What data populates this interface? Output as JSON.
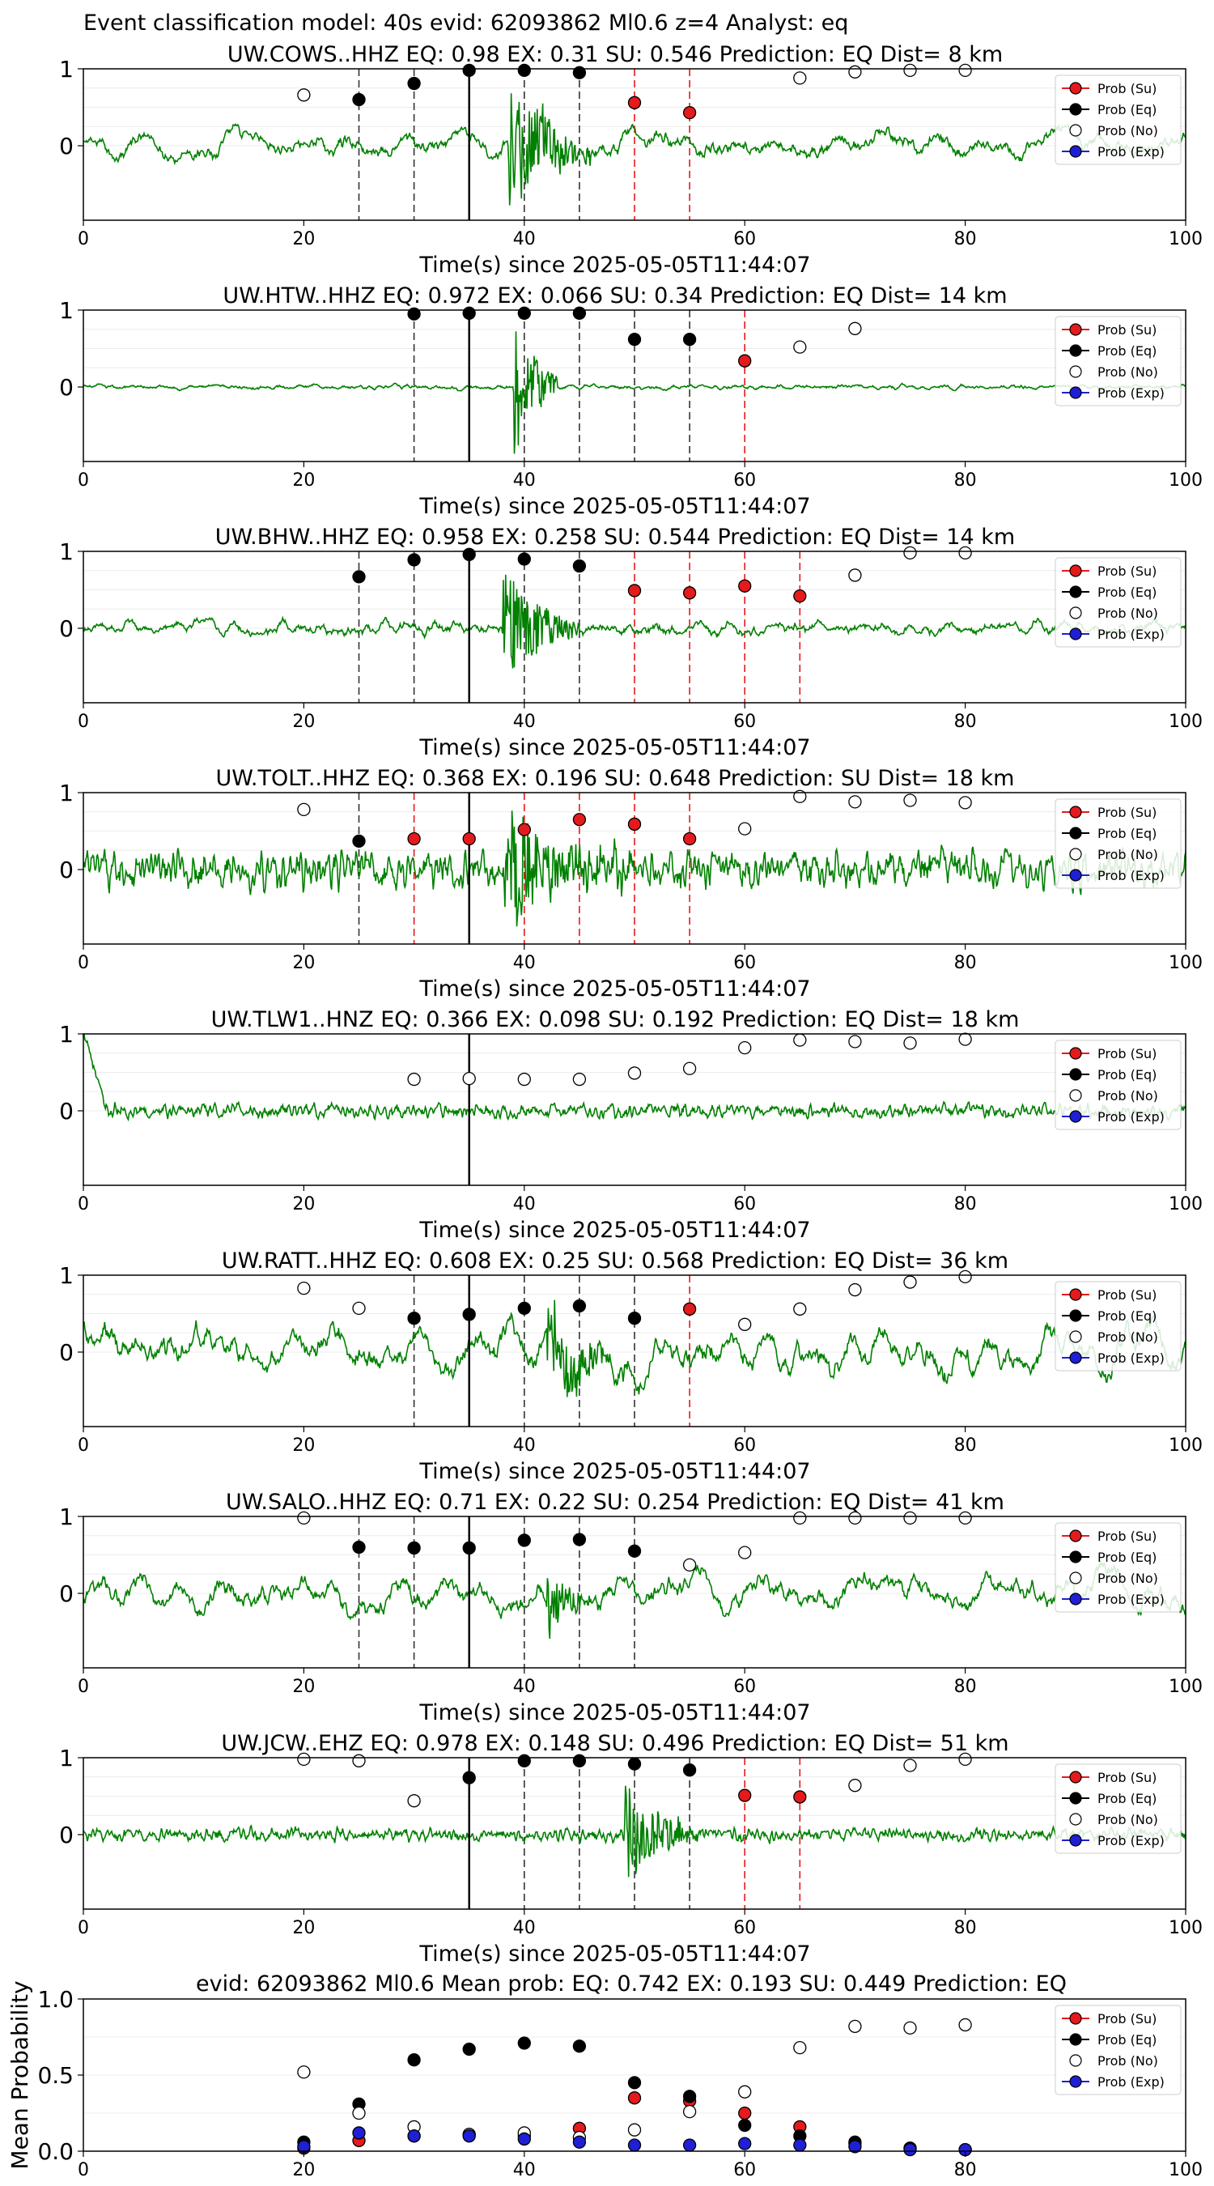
{
  "figure": {
    "suptitle": "Event classification model: 40s evid: 62093862 Ml0.6 z=4 Analyst: eq",
    "legend": [
      "Prob (Su)",
      "Prob (Eq)",
      "Prob (No)",
      "Prob (Exp)"
    ],
    "colors": {
      "su": "#e41a1c",
      "eq": "#000000",
      "no": "#ffffff",
      "exp": "#1f1fd6",
      "waveform": "#008000"
    }
  },
  "chart_data": [
    {
      "type": "line",
      "station": "UW.COWS..HHZ",
      "title": "UW.COWS..HHZ   EQ: 0.98  EX: 0.31  SU: 0.546   Prediction: EQ    Dist= 8 km",
      "xlabel": "Time(s) since 2025-05-05T11:44:07",
      "xlim": [
        0,
        100
      ],
      "xticks": [
        0,
        20,
        40,
        60,
        80,
        100
      ],
      "yticks": [
        "1",
        "0"
      ],
      "pick_time": 35,
      "waveform": {
        "burst_start": 38.5,
        "burst_end": 46,
        "burst_amp": 1.0,
        "noise_amp": 0.28,
        "smooth": 9
      },
      "points": [
        {
          "t": 20,
          "cls": "no",
          "p": 0.66
        },
        {
          "t": 25,
          "cls": "eq",
          "p": 0.6
        },
        {
          "t": 30,
          "cls": "eq",
          "p": 0.81
        },
        {
          "t": 35,
          "cls": "eq",
          "p": 0.98
        },
        {
          "t": 40,
          "cls": "eq",
          "p": 0.98
        },
        {
          "t": 45,
          "cls": "eq",
          "p": 0.95
        },
        {
          "t": 50,
          "cls": "su",
          "p": 0.56
        },
        {
          "t": 55,
          "cls": "su",
          "p": 0.43
        },
        {
          "t": 65,
          "cls": "no",
          "p": 0.88
        },
        {
          "t": 70,
          "cls": "no",
          "p": 0.96
        },
        {
          "t": 75,
          "cls": "no",
          "p": 0.98
        },
        {
          "t": 80,
          "cls": "no",
          "p": 0.98
        }
      ]
    },
    {
      "type": "line",
      "station": "UW.HTW..HHZ",
      "title": "UW.HTW..HHZ   EQ: 0.972  EX: 0.066  SU: 0.34   Prediction: EQ    Dist= 14 km",
      "xlabel": "Time(s) since 2025-05-05T11:44:07",
      "xlim": [
        0,
        100
      ],
      "xticks": [
        0,
        20,
        40,
        60,
        80,
        100
      ],
      "yticks": [
        "1",
        "0"
      ],
      "pick_time": 35,
      "waveform": {
        "burst_start": 39,
        "burst_end": 43,
        "burst_amp": 1.2,
        "noise_amp": 0.05,
        "smooth": 3
      },
      "points": [
        {
          "t": 30,
          "cls": "eq",
          "p": 0.95
        },
        {
          "t": 35,
          "cls": "eq",
          "p": 0.96
        },
        {
          "t": 40,
          "cls": "eq",
          "p": 0.96
        },
        {
          "t": 45,
          "cls": "eq",
          "p": 0.96
        },
        {
          "t": 50,
          "cls": "eq",
          "p": 0.62
        },
        {
          "t": 55,
          "cls": "eq",
          "p": 0.62
        },
        {
          "t": 60,
          "cls": "su",
          "p": 0.34
        },
        {
          "t": 65,
          "cls": "no",
          "p": 0.52
        },
        {
          "t": 70,
          "cls": "no",
          "p": 0.76
        }
      ]
    },
    {
      "type": "line",
      "station": "UW.BHW..HHZ",
      "title": "UW.BHW..HHZ   EQ: 0.958  EX: 0.258  SU: 0.544   Prediction: EQ    Dist= 14 km",
      "xlabel": "Time(s) since 2025-05-05T11:44:07",
      "xlim": [
        0,
        100
      ],
      "xticks": [
        0,
        20,
        40,
        60,
        80,
        100
      ],
      "yticks": [
        "1",
        "0"
      ],
      "pick_time": 35,
      "waveform": {
        "burst_start": 38,
        "burst_end": 45,
        "burst_amp": 0.9,
        "noise_amp": 0.14,
        "smooth": 6
      },
      "points": [
        {
          "t": 25,
          "cls": "eq",
          "p": 0.67
        },
        {
          "t": 30,
          "cls": "eq",
          "p": 0.89
        },
        {
          "t": 35,
          "cls": "eq",
          "p": 0.96
        },
        {
          "t": 40,
          "cls": "eq",
          "p": 0.9
        },
        {
          "t": 45,
          "cls": "eq",
          "p": 0.81
        },
        {
          "t": 50,
          "cls": "su",
          "p": 0.49
        },
        {
          "t": 55,
          "cls": "su",
          "p": 0.46
        },
        {
          "t": 60,
          "cls": "su",
          "p": 0.55
        },
        {
          "t": 65,
          "cls": "su",
          "p": 0.42
        },
        {
          "t": 70,
          "cls": "no",
          "p": 0.69
        },
        {
          "t": 75,
          "cls": "no",
          "p": 0.98
        },
        {
          "t": 80,
          "cls": "no",
          "p": 0.98
        }
      ]
    },
    {
      "type": "line",
      "station": "UW.TOLT..HHZ",
      "title": "UW.TOLT..HHZ   EQ: 0.368  EX: 0.196  SU: 0.648   Prediction: SU    Dist= 18 km",
      "xlabel": "Time(s) since 2025-05-05T11:44:07",
      "xlim": [
        0,
        100
      ],
      "xticks": [
        0,
        20,
        40,
        60,
        80,
        100
      ],
      "yticks": [
        "1",
        "0"
      ],
      "pick_time": 35,
      "waveform": {
        "burst_start": 38,
        "burst_end": 50,
        "burst_amp": 0.8,
        "noise_amp": 0.35,
        "smooth": 1
      },
      "points": [
        {
          "t": 20,
          "cls": "no",
          "p": 0.78
        },
        {
          "t": 25,
          "cls": "eq",
          "p": 0.37
        },
        {
          "t": 30,
          "cls": "su",
          "p": 0.4
        },
        {
          "t": 35,
          "cls": "su",
          "p": 0.4
        },
        {
          "t": 40,
          "cls": "su",
          "p": 0.52
        },
        {
          "t": 45,
          "cls": "su",
          "p": 0.65
        },
        {
          "t": 50,
          "cls": "su",
          "p": 0.59
        },
        {
          "t": 55,
          "cls": "su",
          "p": 0.4
        },
        {
          "t": 60,
          "cls": "no",
          "p": 0.53
        },
        {
          "t": 65,
          "cls": "no",
          "p": 0.95
        },
        {
          "t": 70,
          "cls": "no",
          "p": 0.88
        },
        {
          "t": 75,
          "cls": "no",
          "p": 0.9
        },
        {
          "t": 80,
          "cls": "no",
          "p": 0.87
        }
      ]
    },
    {
      "type": "line",
      "station": "UW.TLW1..HNZ",
      "title": "UW.TLW1..HNZ   EQ: 0.366  EX: 0.098  SU: 0.192   Prediction: EQ    Dist= 18 km",
      "xlabel": "Time(s) since 2025-05-05T11:44:07",
      "xlim": [
        0,
        100
      ],
      "xticks": [
        0,
        20,
        40,
        60,
        80,
        100
      ],
      "yticks": [
        "1",
        "0"
      ],
      "pick_time": 35,
      "waveform": {
        "burst_start": 0,
        "burst_end": 0,
        "burst_amp": 0,
        "noise_amp": 0.12,
        "smooth": 1,
        "initial_spike": true
      },
      "points": [
        {
          "t": 30,
          "cls": "no",
          "p": 0.41
        },
        {
          "t": 35,
          "cls": "no",
          "p": 0.42
        },
        {
          "t": 40,
          "cls": "no",
          "p": 0.41
        },
        {
          "t": 45,
          "cls": "no",
          "p": 0.41
        },
        {
          "t": 50,
          "cls": "no",
          "p": 0.49
        },
        {
          "t": 55,
          "cls": "no",
          "p": 0.55
        },
        {
          "t": 60,
          "cls": "no",
          "p": 0.82
        },
        {
          "t": 65,
          "cls": "no",
          "p": 0.92
        },
        {
          "t": 70,
          "cls": "no",
          "p": 0.9
        },
        {
          "t": 75,
          "cls": "no",
          "p": 0.88
        },
        {
          "t": 80,
          "cls": "no",
          "p": 0.93
        }
      ]
    },
    {
      "type": "line",
      "station": "UW.RATT..HHZ",
      "title": "UW.RATT..HHZ   EQ: 0.608  EX: 0.25  SU: 0.568   Prediction: EQ    Dist= 36 km",
      "xlabel": "Time(s) since 2025-05-05T11:44:07",
      "xlim": [
        0,
        100
      ],
      "xticks": [
        0,
        20,
        40,
        60,
        80,
        100
      ],
      "yticks": [
        "1",
        "0"
      ],
      "pick_time": 35,
      "waveform": {
        "burst_start": 42,
        "burst_end": 50,
        "burst_amp": 0.6,
        "noise_amp": 0.55,
        "smooth": 10
      },
      "points": [
        {
          "t": 20,
          "cls": "no",
          "p": 0.83
        },
        {
          "t": 25,
          "cls": "no",
          "p": 0.57
        },
        {
          "t": 30,
          "cls": "eq",
          "p": 0.44
        },
        {
          "t": 35,
          "cls": "eq",
          "p": 0.49
        },
        {
          "t": 40,
          "cls": "eq",
          "p": 0.57
        },
        {
          "t": 45,
          "cls": "eq",
          "p": 0.6
        },
        {
          "t": 50,
          "cls": "eq",
          "p": 0.44
        },
        {
          "t": 55,
          "cls": "su",
          "p": 0.56
        },
        {
          "t": 60,
          "cls": "no",
          "p": 0.36
        },
        {
          "t": 65,
          "cls": "no",
          "p": 0.56
        },
        {
          "t": 70,
          "cls": "no",
          "p": 0.81
        },
        {
          "t": 75,
          "cls": "no",
          "p": 0.91
        },
        {
          "t": 80,
          "cls": "no",
          "p": 0.98
        }
      ]
    },
    {
      "type": "line",
      "station": "UW.SALO..HHZ",
      "title": "UW.SALO..HHZ   EQ: 0.71  EX: 0.22  SU: 0.254   Prediction: EQ    Dist= 41 km",
      "xlabel": "Time(s) since 2025-05-05T11:44:07",
      "xlim": [
        0,
        100
      ],
      "xticks": [
        0,
        20,
        40,
        60,
        80,
        100
      ],
      "yticks": [
        "1",
        "0"
      ],
      "pick_time": 35,
      "waveform": {
        "burst_start": 42,
        "burst_end": 46,
        "burst_amp": 0.5,
        "noise_amp": 0.4,
        "smooth": 12
      },
      "points": [
        {
          "t": 20,
          "cls": "no",
          "p": 0.98
        },
        {
          "t": 25,
          "cls": "eq",
          "p": 0.6
        },
        {
          "t": 30,
          "cls": "eq",
          "p": 0.59
        },
        {
          "t": 35,
          "cls": "eq",
          "p": 0.59
        },
        {
          "t": 40,
          "cls": "eq",
          "p": 0.69
        },
        {
          "t": 45,
          "cls": "eq",
          "p": 0.7
        },
        {
          "t": 50,
          "cls": "eq",
          "p": 0.55
        },
        {
          "t": 55,
          "cls": "no",
          "p": 0.37
        },
        {
          "t": 60,
          "cls": "no",
          "p": 0.53
        },
        {
          "t": 65,
          "cls": "no",
          "p": 0.98
        },
        {
          "t": 70,
          "cls": "no",
          "p": 0.98
        },
        {
          "t": 75,
          "cls": "no",
          "p": 0.98
        },
        {
          "t": 80,
          "cls": "no",
          "p": 0.98
        }
      ]
    },
    {
      "type": "line",
      "station": "UW.JCW..EHZ",
      "title": "UW.JCW..EHZ   EQ: 0.978  EX: 0.148  SU: 0.496   Prediction: EQ    Dist= 51 km",
      "xlabel": "Time(s) since 2025-05-05T11:44:07",
      "xlim": [
        0,
        100
      ],
      "xticks": [
        0,
        20,
        40,
        60,
        80,
        100
      ],
      "yticks": [
        "1",
        "0"
      ],
      "pick_time": 35,
      "waveform": {
        "burst_start": 49,
        "burst_end": 56,
        "burst_amp": 0.75,
        "noise_amp": 0.12,
        "smooth": 1
      },
      "points": [
        {
          "t": 20,
          "cls": "no",
          "p": 0.98
        },
        {
          "t": 25,
          "cls": "no",
          "p": 0.96
        },
        {
          "t": 30,
          "cls": "no",
          "p": 0.44
        },
        {
          "t": 35,
          "cls": "eq",
          "p": 0.74
        },
        {
          "t": 40,
          "cls": "eq",
          "p": 0.96
        },
        {
          "t": 45,
          "cls": "eq",
          "p": 0.96
        },
        {
          "t": 50,
          "cls": "eq",
          "p": 0.92
        },
        {
          "t": 55,
          "cls": "eq",
          "p": 0.84
        },
        {
          "t": 60,
          "cls": "su",
          "p": 0.51
        },
        {
          "t": 65,
          "cls": "su",
          "p": 0.49
        },
        {
          "t": 70,
          "cls": "no",
          "p": 0.64
        },
        {
          "t": 75,
          "cls": "no",
          "p": 0.9
        },
        {
          "t": 80,
          "cls": "no",
          "p": 0.98
        }
      ]
    },
    {
      "type": "scatter",
      "title": "evid: 62093862  Ml0.6   Mean prob:   EQ: 0.742  EX: 0.193  SU: 0.449   Prediction: EQ",
      "ylabel": "Mean Probability",
      "xlim": [
        0,
        100
      ],
      "ylim": [
        0,
        1.0
      ],
      "xticks": [
        0,
        20,
        40,
        60,
        80,
        100
      ],
      "yticks": [
        0.0,
        0.5,
        1.0
      ],
      "x": [
        20,
        25,
        30,
        35,
        40,
        45,
        50,
        55,
        60,
        65,
        70,
        75,
        80
      ],
      "series": [
        {
          "name": "Prob (Su)",
          "cls": "su",
          "values": [
            0.02,
            0.07,
            0.1,
            0.11,
            0.1,
            0.15,
            0.35,
            0.33,
            0.25,
            0.16,
            0.05,
            0.02,
            0.01
          ]
        },
        {
          "name": "Prob (Eq)",
          "cls": "eq",
          "values": [
            0.06,
            0.31,
            0.6,
            0.67,
            0.71,
            0.69,
            0.45,
            0.36,
            0.17,
            0.1,
            0.06,
            0.02,
            0.01
          ]
        },
        {
          "name": "Prob (No)",
          "cls": "no",
          "values": [
            0.52,
            0.25,
            0.16,
            0.11,
            0.12,
            0.09,
            0.14,
            0.26,
            0.39,
            0.68,
            0.82,
            0.81,
            0.83
          ]
        },
        {
          "name": "Prob (Exp)",
          "cls": "exp",
          "values": [
            0.03,
            0.12,
            0.1,
            0.1,
            0.08,
            0.06,
            0.04,
            0.04,
            0.05,
            0.04,
            0.03,
            0.01,
            0.01
          ]
        }
      ]
    }
  ]
}
